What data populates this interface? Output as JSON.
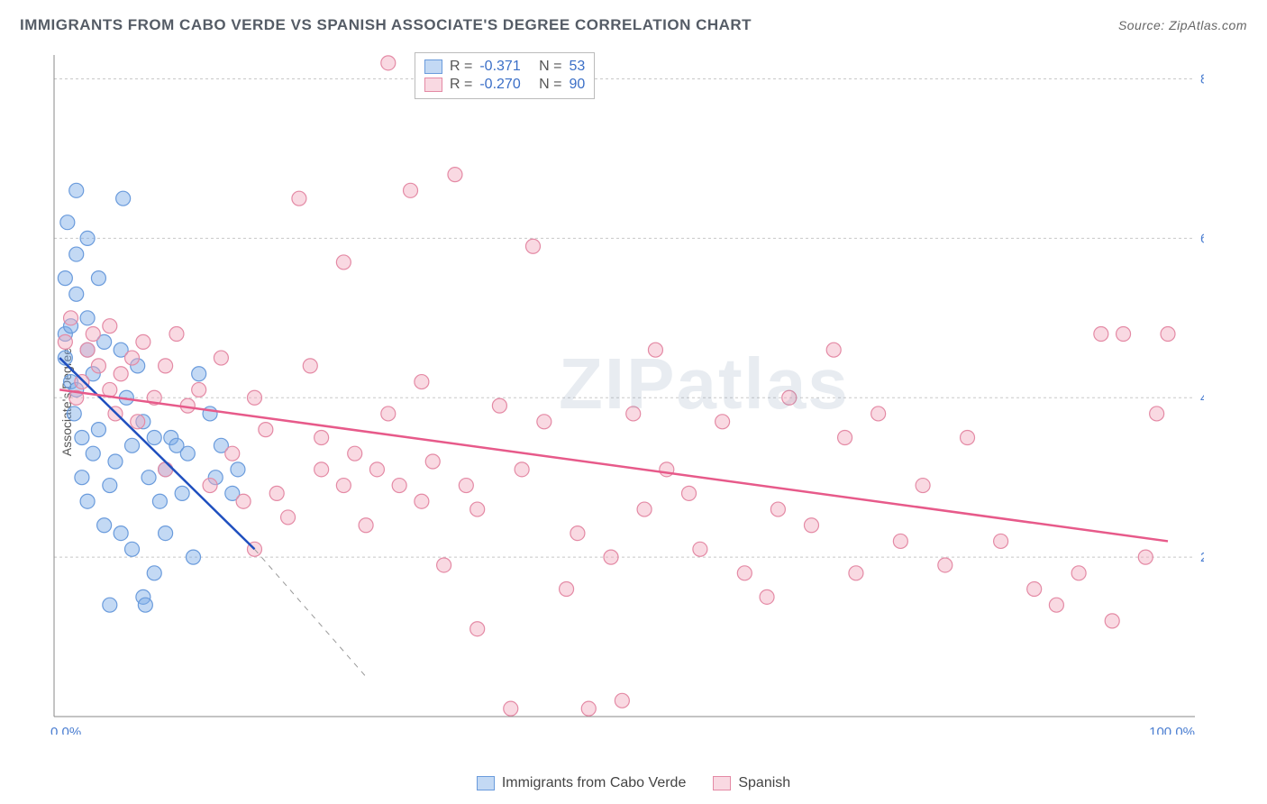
{
  "title": "IMMIGRANTS FROM CABO VERDE VS SPANISH ASSOCIATE'S DEGREE CORRELATION CHART",
  "source_label": "Source: ZipAtlas.com",
  "y_axis_label": "Associate's Degree",
  "watermark": "ZIPatlas",
  "chart": {
    "type": "scatter",
    "xlim": [
      0,
      100
    ],
    "ylim": [
      0,
      83
    ],
    "x_tick_labels": {
      "start": "0.0%",
      "end": "100.0%"
    },
    "y_ticks": [
      20,
      40,
      60,
      80
    ],
    "y_tick_labels": [
      "20.0%",
      "40.0%",
      "60.0%",
      "80.0%"
    ],
    "grid_color": "#c8c8c8",
    "background_color": "#ffffff",
    "axis_color": "#888888",
    "marker_radius": 8,
    "series": [
      {
        "key": "a",
        "label": "Immigrants from Cabo Verde",
        "fill": "rgba(122,170,230,0.45)",
        "stroke": "#6a9bdc",
        "R": "-0.371",
        "N": "53",
        "trend": {
          "x1": 0.5,
          "y1": 45,
          "x2": 18,
          "y2": 21,
          "ext_x2": 28,
          "ext_y2": 5,
          "color": "#1f4fbf"
        },
        "points": [
          [
            1,
            45
          ],
          [
            1,
            48
          ],
          [
            1,
            55
          ],
          [
            1.2,
            62
          ],
          [
            1.5,
            49
          ],
          [
            1.5,
            42
          ],
          [
            1.8,
            38
          ],
          [
            2,
            66
          ],
          [
            2,
            58
          ],
          [
            2,
            53
          ],
          [
            2,
            41
          ],
          [
            2.5,
            35
          ],
          [
            2.5,
            30
          ],
          [
            3,
            60
          ],
          [
            3,
            50
          ],
          [
            3,
            46
          ],
          [
            3,
            27
          ],
          [
            3.5,
            43
          ],
          [
            3.5,
            33
          ],
          [
            4,
            55
          ],
          [
            4,
            36
          ],
          [
            4.5,
            47
          ],
          [
            4.5,
            24
          ],
          [
            5,
            14
          ],
          [
            5,
            29
          ],
          [
            5.5,
            32
          ],
          [
            6,
            46
          ],
          [
            6,
            23
          ],
          [
            6.2,
            65
          ],
          [
            6.5,
            40
          ],
          [
            7,
            34
          ],
          [
            7,
            21
          ],
          [
            7.5,
            44
          ],
          [
            8,
            37
          ],
          [
            8,
            15
          ],
          [
            8.2,
            14
          ],
          [
            8.5,
            30
          ],
          [
            9,
            35
          ],
          [
            9,
            18
          ],
          [
            9.5,
            27
          ],
          [
            10,
            31
          ],
          [
            10,
            23
          ],
          [
            10.5,
            35
          ],
          [
            11,
            34
          ],
          [
            11.5,
            28
          ],
          [
            12,
            33
          ],
          [
            12.5,
            20
          ],
          [
            13,
            43
          ],
          [
            14,
            38
          ],
          [
            14.5,
            30
          ],
          [
            15,
            34
          ],
          [
            16,
            28
          ],
          [
            16.5,
            31
          ]
        ]
      },
      {
        "key": "b",
        "label": "Spanish",
        "fill": "rgba(241,170,190,0.45)",
        "stroke": "#e48aa5",
        "R": "-0.270",
        "N": "90",
        "trend": {
          "x1": 0.5,
          "y1": 41,
          "x2": 100,
          "y2": 22,
          "color": "#e75a8a"
        },
        "points": [
          [
            1,
            47
          ],
          [
            1.5,
            50
          ],
          [
            2,
            40
          ],
          [
            2.5,
            42
          ],
          [
            3,
            46
          ],
          [
            3.5,
            48
          ],
          [
            4,
            44
          ],
          [
            5,
            41
          ],
          [
            5,
            49
          ],
          [
            5.5,
            38
          ],
          [
            6,
            43
          ],
          [
            7,
            45
          ],
          [
            7.5,
            37
          ],
          [
            8,
            47
          ],
          [
            9,
            40
          ],
          [
            10,
            44
          ],
          [
            10,
            31
          ],
          [
            11,
            48
          ],
          [
            12,
            39
          ],
          [
            13,
            41
          ],
          [
            14,
            29
          ],
          [
            15,
            45
          ],
          [
            16,
            33
          ],
          [
            17,
            27
          ],
          [
            18,
            21
          ],
          [
            18,
            40
          ],
          [
            19,
            36
          ],
          [
            20,
            28
          ],
          [
            21,
            25
          ],
          [
            22,
            65
          ],
          [
            23,
            44
          ],
          [
            24,
            31
          ],
          [
            24,
            35
          ],
          [
            26,
            57
          ],
          [
            26,
            29
          ],
          [
            27,
            33
          ],
          [
            28,
            24
          ],
          [
            29,
            31
          ],
          [
            30,
            82
          ],
          [
            30,
            38
          ],
          [
            31,
            29
          ],
          [
            32,
            66
          ],
          [
            33,
            27
          ],
          [
            33,
            42
          ],
          [
            34,
            32
          ],
          [
            35,
            19
          ],
          [
            36,
            68
          ],
          [
            37,
            29
          ],
          [
            38,
            26
          ],
          [
            38,
            11
          ],
          [
            40,
            39
          ],
          [
            41,
            1
          ],
          [
            42,
            31
          ],
          [
            43,
            59
          ],
          [
            44,
            37
          ],
          [
            46,
            16
          ],
          [
            47,
            23
          ],
          [
            48,
            1
          ],
          [
            50,
            20
          ],
          [
            51,
            2
          ],
          [
            52,
            38
          ],
          [
            53,
            26
          ],
          [
            54,
            46
          ],
          [
            55,
            31
          ],
          [
            57,
            28
          ],
          [
            58,
            21
          ],
          [
            60,
            37
          ],
          [
            62,
            18
          ],
          [
            64,
            15
          ],
          [
            65,
            26
          ],
          [
            66,
            40
          ],
          [
            68,
            24
          ],
          [
            70,
            46
          ],
          [
            71,
            35
          ],
          [
            72,
            18
          ],
          [
            74,
            38
          ],
          [
            76,
            22
          ],
          [
            78,
            29
          ],
          [
            80,
            19
          ],
          [
            82,
            35
          ],
          [
            85,
            22
          ],
          [
            88,
            16
          ],
          [
            90,
            14
          ],
          [
            92,
            18
          ],
          [
            94,
            48
          ],
          [
            95,
            12
          ],
          [
            96,
            48
          ],
          [
            98,
            20
          ],
          [
            99,
            38
          ],
          [
            100,
            48
          ]
        ]
      }
    ]
  },
  "top_legend_labels": {
    "R": "R =",
    "N": "N ="
  },
  "bottom_legend_labels": [
    "Immigrants from Cabo Verde",
    "Spanish"
  ]
}
